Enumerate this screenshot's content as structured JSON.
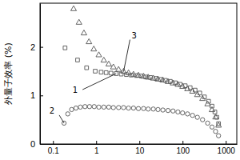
{
  "chart_data": {
    "type": "scatter",
    "y_label": "外量子效率 (%)",
    "log": "x",
    "xlim": [
      0.05,
      1800
    ],
    "xticks": [
      0.1,
      1,
      10,
      100,
      1000
    ],
    "ylim": [
      0,
      2.9
    ],
    "yticks": [
      0,
      1,
      2
    ],
    "series": [
      {
        "name": "1",
        "color": "#555555",
        "marker": "square",
        "x": [
          0.19,
          0.37,
          0.6,
          0.95,
          1.3,
          1.7,
          2.2,
          2.9,
          3.8,
          5,
          6.5,
          8.5,
          11,
          14,
          18,
          24,
          31,
          40,
          52,
          68,
          88,
          115,
          150,
          195,
          250,
          320,
          400,
          480,
          560,
          620,
          680
        ],
        "values": [
          1.98,
          1.73,
          1.57,
          1.5,
          1.48,
          1.47,
          1.46,
          1.45,
          1.44,
          1.43,
          1.42,
          1.41,
          1.4,
          1.38,
          1.37,
          1.35,
          1.33,
          1.31,
          1.29,
          1.26,
          1.23,
          1.2,
          1.16,
          1.11,
          1.05,
          0.97,
          0.88,
          0.78,
          0.66,
          0.55,
          0.42
        ]
      },
      {
        "name": "2",
        "color": "#555555",
        "marker": "circle",
        "x": [
          0.18,
          0.22,
          0.27,
          0.34,
          0.43,
          0.55,
          0.7,
          0.9,
          1.15,
          1.5,
          1.95,
          2.5,
          3.3,
          4.3,
          5.6,
          7.3,
          9.5,
          12.5,
          16,
          21,
          27,
          35,
          46,
          60,
          78,
          100,
          130,
          170,
          220,
          290,
          380,
          480,
          580,
          680
        ],
        "values": [
          0.43,
          0.62,
          0.71,
          0.74,
          0.76,
          0.77,
          0.77,
          0.77,
          0.76,
          0.76,
          0.76,
          0.75,
          0.75,
          0.75,
          0.74,
          0.74,
          0.73,
          0.73,
          0.72,
          0.72,
          0.71,
          0.7,
          0.69,
          0.68,
          0.66,
          0.64,
          0.62,
          0.59,
          0.55,
          0.5,
          0.43,
          0.35,
          0.26,
          0.17
        ]
      },
      {
        "name": "3",
        "color": "#555555",
        "marker": "triangle",
        "x": [
          0.3,
          0.4,
          0.52,
          0.68,
          0.88,
          1.15,
          1.5,
          1.95,
          2.5,
          3.3,
          4.3,
          5.6,
          7.3,
          9.5,
          12.5,
          16,
          21,
          27,
          35,
          46,
          60,
          78,
          100,
          130,
          170,
          220,
          290,
          380,
          480,
          580,
          680
        ],
        "values": [
          2.78,
          2.5,
          2.28,
          2.1,
          1.95,
          1.83,
          1.72,
          1.64,
          1.58,
          1.53,
          1.49,
          1.46,
          1.43,
          1.41,
          1.39,
          1.37,
          1.35,
          1.33,
          1.31,
          1.28,
          1.25,
          1.22,
          1.18,
          1.13,
          1.08,
          1.01,
          0.93,
          0.82,
          0.7,
          0.55,
          0.38
        ]
      }
    ]
  }
}
